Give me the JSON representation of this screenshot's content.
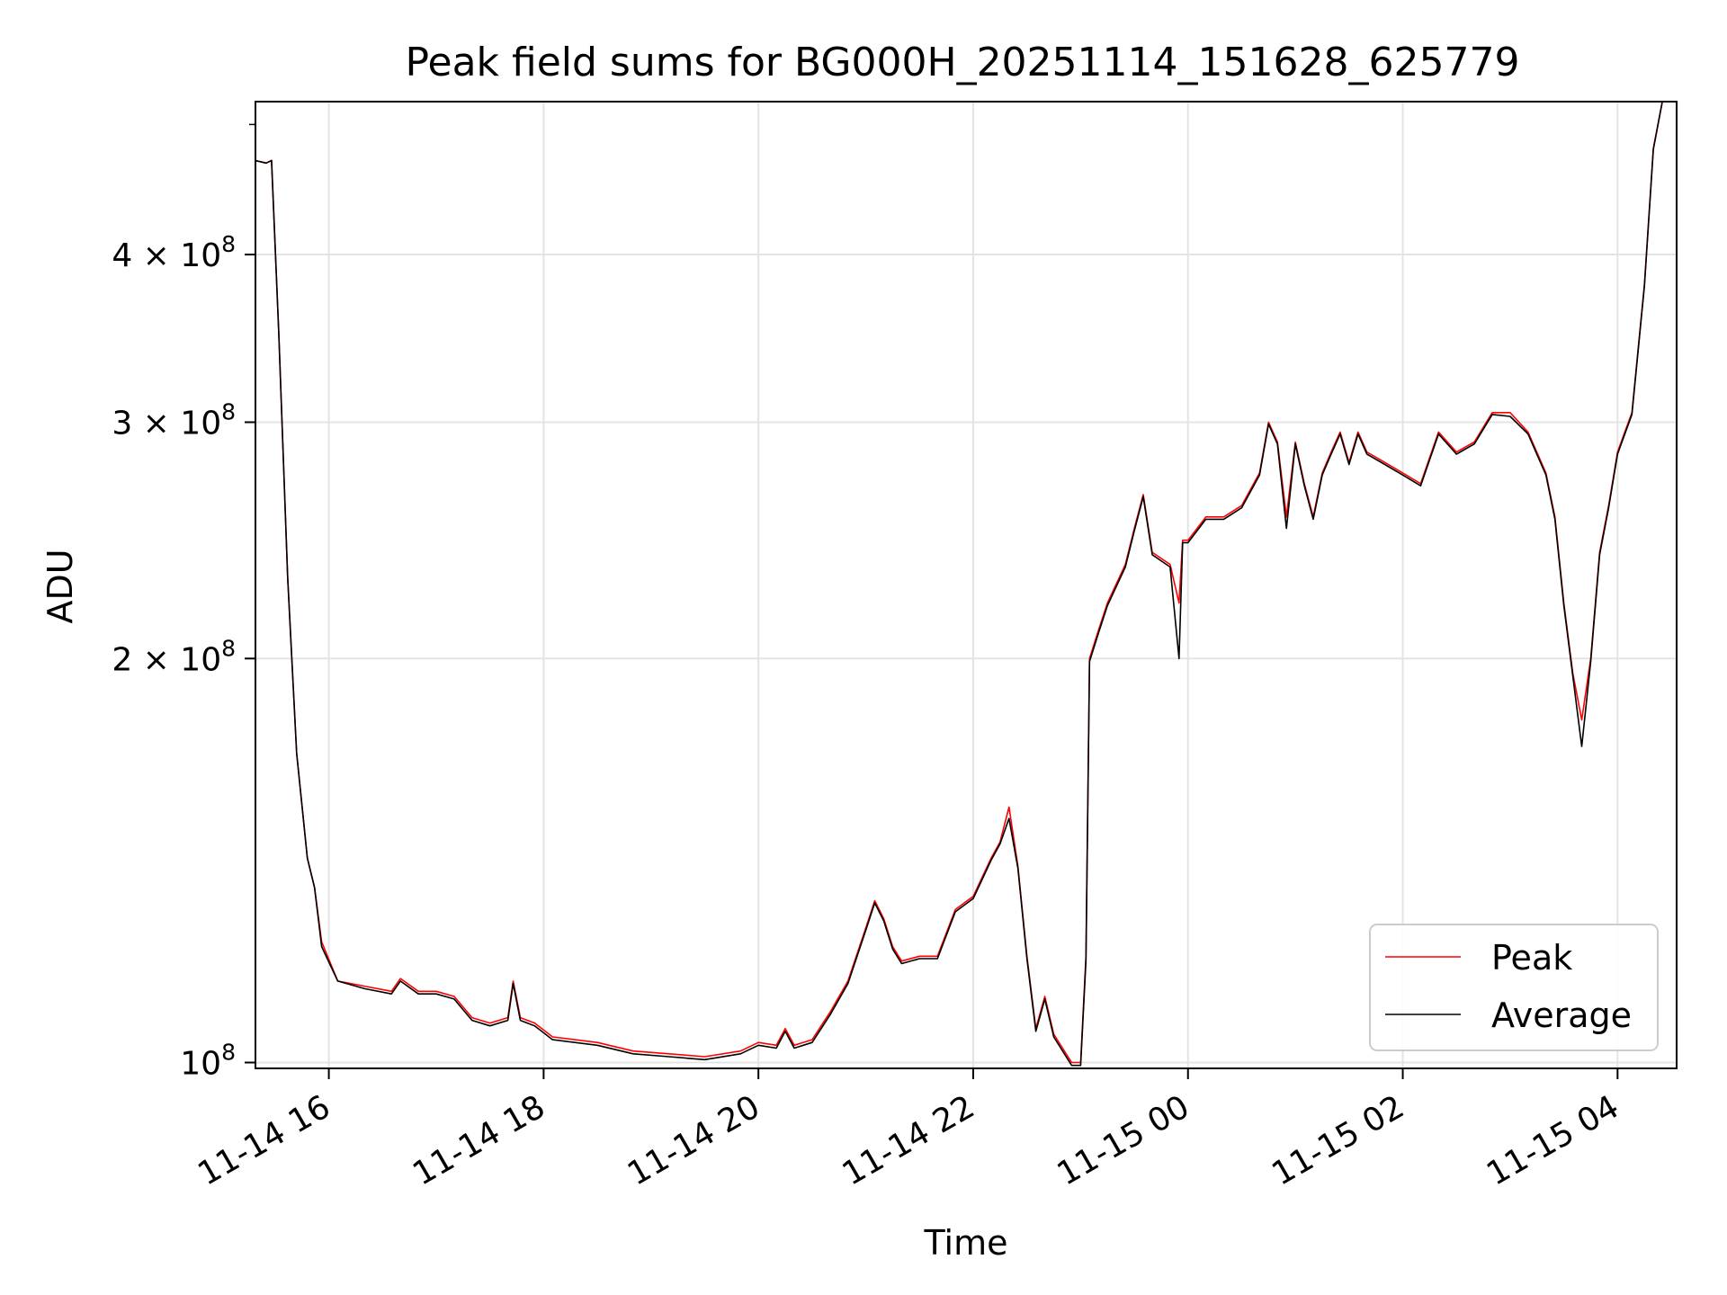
{
  "chart_data": {
    "type": "line",
    "title": "Peak field sums for BG000H_20251114_151628_625779",
    "xlabel": "Time",
    "ylabel": "ADU",
    "y_scale": "log",
    "x_range": [
      "11-14 15:19",
      "11-15 04:33"
    ],
    "ylim": [
      99000000,
      520000000
    ],
    "grid": true,
    "legend_position": "lower-right",
    "x_ticks": [
      {
        "time": "11-14 16:00",
        "label": "11-14 16"
      },
      {
        "time": "11-14 18:00",
        "label": "11-14 18"
      },
      {
        "time": "11-14 20:00",
        "label": "11-14 20"
      },
      {
        "time": "11-14 22:00",
        "label": "11-14 22"
      },
      {
        "time": "11-15 00:00",
        "label": "11-15 00"
      },
      {
        "time": "11-15 02:00",
        "label": "11-15 02"
      },
      {
        "time": "11-15 04:00",
        "label": "11-15 04"
      }
    ],
    "y_ticks": [
      {
        "value": 100000000,
        "mantissa": "",
        "exp": "8",
        "label": "10^8"
      },
      {
        "value": 200000000,
        "mantissa": "2",
        "exp": "8",
        "label": "2×10^8"
      },
      {
        "value": 300000000,
        "mantissa": "3",
        "exp": "8",
        "label": "3×10^8"
      },
      {
        "value": 400000000,
        "mantissa": "4",
        "exp": "8",
        "label": "4×10^8"
      }
    ],
    "series": [
      {
        "name": "Peak",
        "color": "#ff0000",
        "points": [
          [
            "11-14 15:19",
            470000000.0
          ],
          [
            "11-14 15:25",
            468000000.0
          ],
          [
            "11-14 15:28",
            470000000.0
          ],
          [
            "11-14 15:32",
            350000000.0
          ],
          [
            "11-14 15:37",
            230000000.0
          ],
          [
            "11-14 15:42",
            170000000.0
          ],
          [
            "11-14 15:48",
            142000000.0
          ],
          [
            "11-14 15:52",
            135000000.0
          ],
          [
            "11-14 15:56",
            123000000.0
          ],
          [
            "11-14 16:05",
            115000000.0
          ],
          [
            "11-14 16:20",
            114000000.0
          ],
          [
            "11-14 16:35",
            113000000.0
          ],
          [
            "11-14 16:40",
            115500000.0
          ],
          [
            "11-14 16:50",
            113000000.0
          ],
          [
            "11-14 17:00",
            113000000.0
          ],
          [
            "11-14 17:10",
            112000000.0
          ],
          [
            "11-14 17:20",
            108000000.0
          ],
          [
            "11-14 17:30",
            107000000.0
          ],
          [
            "11-14 17:40",
            108000000.0
          ],
          [
            "11-14 17:43",
            115000000.0
          ],
          [
            "11-14 17:47",
            108000000.0
          ],
          [
            "11-14 17:55",
            107000000.0
          ],
          [
            "11-14 18:05",
            104500000.0
          ],
          [
            "11-14 18:30",
            103500000.0
          ],
          [
            "11-14 18:50",
            102000000.0
          ],
          [
            "11-14 19:10",
            101500000.0
          ],
          [
            "11-14 19:30",
            101000000.0
          ],
          [
            "11-14 19:50",
            102000000.0
          ],
          [
            "11-14 20:00",
            103500000.0
          ],
          [
            "11-14 20:10",
            103000000.0
          ],
          [
            "11-14 20:15",
            106000000.0
          ],
          [
            "11-14 20:20",
            103000000.0
          ],
          [
            "11-14 20:30",
            104000000.0
          ],
          [
            "11-14 20:40",
            109000000.0
          ],
          [
            "11-14 20:50",
            115000000.0
          ],
          [
            "11-14 21:00",
            126000000.0
          ],
          [
            "11-14 21:05",
            132000000.0
          ],
          [
            "11-14 21:10",
            128000000.0
          ],
          [
            "11-14 21:15",
            122000000.0
          ],
          [
            "11-14 21:20",
            119000000.0
          ],
          [
            "11-14 21:30",
            120000000.0
          ],
          [
            "11-14 21:40",
            120000000.0
          ],
          [
            "11-14 21:50",
            130000000.0
          ],
          [
            "11-14 22:00",
            133000000.0
          ],
          [
            "11-14 22:10",
            142000000.0
          ],
          [
            "11-14 22:15",
            146000000.0
          ],
          [
            "11-14 22:20",
            155000000.0
          ],
          [
            "11-14 22:25",
            140000000.0
          ],
          [
            "11-14 22:30",
            120000000.0
          ],
          [
            "11-14 22:35",
            106000000.0
          ],
          [
            "11-14 22:40",
            112000000.0
          ],
          [
            "11-14 22:45",
            105000000.0
          ],
          [
            "11-14 22:55",
            100000000.0
          ],
          [
            "11-14 23:00",
            100000000.0
          ],
          [
            "11-14 23:03",
            120000000.0
          ],
          [
            "11-14 23:05",
            200000000.0
          ],
          [
            "11-14 23:10",
            210000000.0
          ],
          [
            "11-14 23:15",
            220000000.0
          ],
          [
            "11-14 23:25",
            235000000.0
          ],
          [
            "11-14 23:30",
            250000000.0
          ],
          [
            "11-14 23:35",
            265000000.0
          ],
          [
            "11-14 23:40",
            240000000.0
          ],
          [
            "11-14 23:50",
            235000000.0
          ],
          [
            "11-14 23:55",
            220000000.0
          ],
          [
            "11-14 23:57",
            245000000.0
          ],
          [
            "11-15 00:00",
            245000000.0
          ],
          [
            "11-15 00:10",
            255000000.0
          ],
          [
            "11-15 00:20",
            255000000.0
          ],
          [
            "11-15 00:30",
            260000000.0
          ],
          [
            "11-15 00:40",
            275000000.0
          ],
          [
            "11-15 00:45",
            300000000.0
          ],
          [
            "11-15 00:50",
            290000000.0
          ],
          [
            "11-15 00:55",
            255000000.0
          ],
          [
            "11-15 01:00",
            290000000.0
          ],
          [
            "11-15 01:05",
            270000000.0
          ],
          [
            "11-15 01:10",
            255000000.0
          ],
          [
            "11-15 01:15",
            275000000.0
          ],
          [
            "11-15 01:20",
            285000000.0
          ],
          [
            "11-15 01:25",
            295000000.0
          ],
          [
            "11-15 01:30",
            280000000.0
          ],
          [
            "11-15 01:35",
            295000000.0
          ],
          [
            "11-15 01:40",
            285000000.0
          ],
          [
            "11-15 01:50",
            280000000.0
          ],
          [
            "11-15 02:00",
            275000000.0
          ],
          [
            "11-15 02:10",
            270000000.0
          ],
          [
            "11-15 02:20",
            295000000.0
          ],
          [
            "11-15 02:30",
            285000000.0
          ],
          [
            "11-15 02:40",
            290000000.0
          ],
          [
            "11-15 02:50",
            305000000.0
          ],
          [
            "11-15 03:00",
            305000000.0
          ],
          [
            "11-15 03:10",
            295000000.0
          ],
          [
            "11-15 03:20",
            275000000.0
          ],
          [
            "11-15 03:25",
            255000000.0
          ],
          [
            "11-15 03:30",
            220000000.0
          ],
          [
            "11-15 03:35",
            195000000.0
          ],
          [
            "11-15 03:40",
            180000000.0
          ],
          [
            "11-15 03:45",
            200000000.0
          ],
          [
            "11-15 03:50",
            240000000.0
          ],
          [
            "11-15 03:55",
            260000000.0
          ],
          [
            "11-15 04:00",
            285000000.0
          ],
          [
            "11-15 04:08",
            305000000.0
          ],
          [
            "11-15 04:15",
            380000000.0
          ],
          [
            "11-15 04:20",
            480000000.0
          ],
          [
            "11-15 04:25",
            520000000.0
          ],
          [
            "11-15 04:33",
            520000000.0
          ]
        ]
      },
      {
        "name": "Average",
        "color": "#000000",
        "points": [
          [
            "11-14 15:19",
            470000000.0
          ],
          [
            "11-14 15:25",
            468000000.0
          ],
          [
            "11-14 15:28",
            470000000.0
          ],
          [
            "11-14 15:32",
            350000000.0
          ],
          [
            "11-14 15:37",
            230000000.0
          ],
          [
            "11-14 15:42",
            170000000.0
          ],
          [
            "11-14 15:48",
            142000000.0
          ],
          [
            "11-14 15:52",
            135000000.0
          ],
          [
            "11-14 15:56",
            122000000.0
          ],
          [
            "11-14 16:05",
            115000000.0
          ],
          [
            "11-14 16:20",
            113500000.0
          ],
          [
            "11-14 16:35",
            112500000.0
          ],
          [
            "11-14 16:40",
            115000000.0
          ],
          [
            "11-14 16:50",
            112500000.0
          ],
          [
            "11-14 17:00",
            112500000.0
          ],
          [
            "11-14 17:10",
            111500000.0
          ],
          [
            "11-14 17:20",
            107500000.0
          ],
          [
            "11-14 17:30",
            106500000.0
          ],
          [
            "11-14 17:40",
            107500000.0
          ],
          [
            "11-14 17:43",
            114500000.0
          ],
          [
            "11-14 17:47",
            107500000.0
          ],
          [
            "11-14 17:55",
            106500000.0
          ],
          [
            "11-14 18:05",
            104000000.0
          ],
          [
            "11-14 18:30",
            103000000.0
          ],
          [
            "11-14 18:50",
            101500000.0
          ],
          [
            "11-14 19:10",
            101000000.0
          ],
          [
            "11-14 19:30",
            100500000.0
          ],
          [
            "11-14 19:50",
            101500000.0
          ],
          [
            "11-14 20:00",
            103000000.0
          ],
          [
            "11-14 20:10",
            102500000.0
          ],
          [
            "11-14 20:15",
            105500000.0
          ],
          [
            "11-14 20:20",
            102500000.0
          ],
          [
            "11-14 20:30",
            103500000.0
          ],
          [
            "11-14 20:40",
            108500000.0
          ],
          [
            "11-14 20:50",
            114500000.0
          ],
          [
            "11-14 21:00",
            125500000.0
          ],
          [
            "11-14 21:05",
            131500000.0
          ],
          [
            "11-14 21:10",
            127500000.0
          ],
          [
            "11-14 21:15",
            121500000.0
          ],
          [
            "11-14 21:20",
            118500000.0
          ],
          [
            "11-14 21:30",
            119500000.0
          ],
          [
            "11-14 21:40",
            119500000.0
          ],
          [
            "11-14 21:50",
            129500000.0
          ],
          [
            "11-14 22:00",
            132500000.0
          ],
          [
            "11-14 22:10",
            141500000.0
          ],
          [
            "11-14 22:15",
            145500000.0
          ],
          [
            "11-14 22:20",
            152000000.0
          ],
          [
            "11-14 22:25",
            139500000.0
          ],
          [
            "11-14 22:30",
            119500000.0
          ],
          [
            "11-14 22:35",
            105500000.0
          ],
          [
            "11-14 22:40",
            111500000.0
          ],
          [
            "11-14 22:45",
            104500000.0
          ],
          [
            "11-14 22:55",
            99500000.0
          ],
          [
            "11-14 23:00",
            99500000.0
          ],
          [
            "11-14 23:03",
            119000000.0
          ],
          [
            "11-14 23:05",
            199000000.0
          ],
          [
            "11-14 23:10",
            209000000.0
          ],
          [
            "11-14 23:15",
            219000000.0
          ],
          [
            "11-14 23:25",
            234000000.0
          ],
          [
            "11-14 23:30",
            249000000.0
          ],
          [
            "11-14 23:35",
            264000000.0
          ],
          [
            "11-14 23:40",
            239000000.0
          ],
          [
            "11-14 23:50",
            234000000.0
          ],
          [
            "11-14 23:55",
            200000000.0
          ],
          [
            "11-14 23:57",
            244000000.0
          ],
          [
            "11-15 00:00",
            244000000.0
          ],
          [
            "11-15 00:10",
            254000000.0
          ],
          [
            "11-15 00:20",
            254000000.0
          ],
          [
            "11-15 00:30",
            259000000.0
          ],
          [
            "11-15 00:40",
            274000000.0
          ],
          [
            "11-15 00:45",
            299000000.0
          ],
          [
            "11-15 00:50",
            289000000.0
          ],
          [
            "11-15 00:55",
            250000000.0
          ],
          [
            "11-15 01:00",
            289000000.0
          ],
          [
            "11-15 01:05",
            269000000.0
          ],
          [
            "11-15 01:10",
            254000000.0
          ],
          [
            "11-15 01:15",
            274000000.0
          ],
          [
            "11-15 01:20",
            284000000.0
          ],
          [
            "11-15 01:25",
            294000000.0
          ],
          [
            "11-15 01:30",
            279000000.0
          ],
          [
            "11-15 01:35",
            294000000.0
          ],
          [
            "11-15 01:40",
            284000000.0
          ],
          [
            "11-15 01:50",
            279000000.0
          ],
          [
            "11-15 02:00",
            274000000.0
          ],
          [
            "11-15 02:10",
            269000000.0
          ],
          [
            "11-15 02:20",
            294000000.0
          ],
          [
            "11-15 02:30",
            284000000.0
          ],
          [
            "11-15 02:40",
            289000000.0
          ],
          [
            "11-15 02:50",
            304000000.0
          ],
          [
            "11-15 03:00",
            303000000.0
          ],
          [
            "11-15 03:10",
            294000000.0
          ],
          [
            "11-15 03:20",
            274000000.0
          ],
          [
            "11-15 03:25",
            254000000.0
          ],
          [
            "11-15 03:30",
            219000000.0
          ],
          [
            "11-15 03:35",
            194000000.0
          ],
          [
            "11-15 03:40",
            172000000.0
          ],
          [
            "11-15 03:45",
            199000000.0
          ],
          [
            "11-15 03:50",
            239000000.0
          ],
          [
            "11-15 03:55",
            259000000.0
          ],
          [
            "11-15 04:00",
            284000000.0
          ],
          [
            "11-15 04:08",
            304000000.0
          ],
          [
            "11-15 04:15",
            379000000.0
          ],
          [
            "11-15 04:20",
            479000000.0
          ],
          [
            "11-15 04:25",
            520000000.0
          ],
          [
            "11-15 04:33",
            520000000.0
          ]
        ]
      }
    ]
  }
}
